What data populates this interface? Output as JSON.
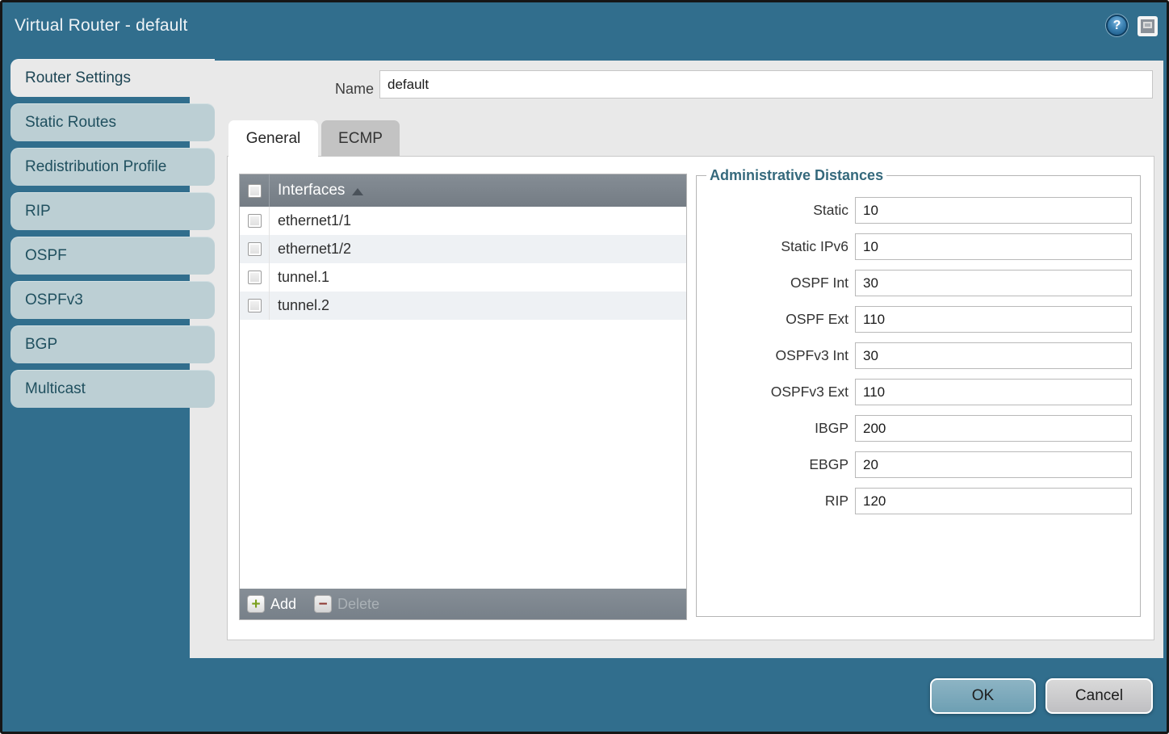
{
  "window": {
    "title": "Virtual Router - default",
    "help_glyph": "?"
  },
  "sidebar": {
    "items": [
      {
        "label": "Router Settings",
        "active": true
      },
      {
        "label": "Static Routes",
        "active": false
      },
      {
        "label": "Redistribution Profile",
        "active": false
      },
      {
        "label": "RIP",
        "active": false
      },
      {
        "label": "OSPF",
        "active": false
      },
      {
        "label": "OSPFv3",
        "active": false
      },
      {
        "label": "BGP",
        "active": false
      },
      {
        "label": "Multicast",
        "active": false
      }
    ]
  },
  "form": {
    "name_label": "Name",
    "name_value": "default"
  },
  "tabs": [
    {
      "label": "General",
      "active": true
    },
    {
      "label": "ECMP",
      "active": false
    }
  ],
  "interfaces": {
    "header": "Interfaces",
    "rows": [
      "ethernet1/1",
      "ethernet1/2",
      "tunnel.1",
      "tunnel.2"
    ],
    "add_label": "Add",
    "add_glyph": "+",
    "delete_label": "Delete",
    "delete_glyph": "−",
    "delete_enabled": false
  },
  "admin": {
    "title": "Administrative Distances",
    "fields": [
      {
        "label": "Static",
        "value": "10"
      },
      {
        "label": "Static IPv6",
        "value": "10"
      },
      {
        "label": "OSPF Int",
        "value": "30"
      },
      {
        "label": "OSPF Ext",
        "value": "110"
      },
      {
        "label": "OSPFv3 Int",
        "value": "30"
      },
      {
        "label": "OSPFv3 Ext",
        "value": "110"
      },
      {
        "label": "IBGP",
        "value": "200"
      },
      {
        "label": "EBGP",
        "value": "20"
      },
      {
        "label": "RIP",
        "value": "120"
      }
    ]
  },
  "footer": {
    "ok_label": "OK",
    "cancel_label": "Cancel"
  },
  "colors": {
    "dialog_background": "#316e8d",
    "panel_background": "#e9e9e9",
    "sidebar_tab": "#bccfd4",
    "sidebar_tab_active": "#e9e9e9",
    "table_header": "#7b838b",
    "table_stripe": "#eef1f4",
    "legend_text": "#35697c",
    "ok_button": "#7aa9bc",
    "cancel_button": "#cccccc",
    "add_plus": "#7ba01e",
    "delete_minus": "#8e3b34"
  }
}
